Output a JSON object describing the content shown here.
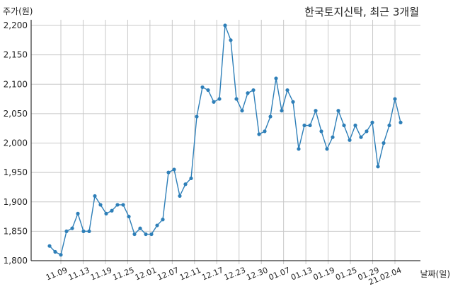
{
  "chart_data": {
    "type": "line",
    "title": "한국토지신탁, 최근 3개월",
    "ylabel": "주가(원)",
    "xlabel": "날짜(일)",
    "ylim": [
      1800,
      2200
    ],
    "yticks": [
      1800,
      1850,
      1900,
      1950,
      2000,
      2050,
      2100,
      2150,
      2200
    ],
    "ytick_labels": [
      "1,800",
      "1,850",
      "1,900",
      "1,950",
      "2,000",
      "2,050",
      "2,100",
      "2,150",
      "2,200"
    ],
    "x_tick_labels": [
      "11.09",
      "11.13",
      "11.19",
      "11.25",
      "12.01",
      "12.07",
      "12.11",
      "12.17",
      "12.23",
      "12.30",
      "01.07",
      "01.13",
      "01.19",
      "01.25",
      "01.29",
      "21.02.04"
    ],
    "grid": true,
    "series_color": "#2e7fb8",
    "values": [
      1825,
      1815,
      1810,
      1850,
      1855,
      1880,
      1850,
      1850,
      1910,
      1895,
      1880,
      1885,
      1895,
      1895,
      1875,
      1845,
      1855,
      1845,
      1845,
      1860,
      1870,
      1950,
      1955,
      1910,
      1930,
      1940,
      2045,
      2095,
      2090,
      2070,
      2075,
      2200,
      2175,
      2075,
      2055,
      2085,
      2090,
      2015,
      2020,
      2045,
      2110,
      2055,
      2090,
      2070,
      1990,
      2030,
      2030,
      2055,
      2020,
      1990,
      2010,
      2055,
      2030,
      2005,
      2030,
      2010,
      2020,
      2035,
      1960,
      2000,
      2030,
      2075,
      2035
    ]
  }
}
